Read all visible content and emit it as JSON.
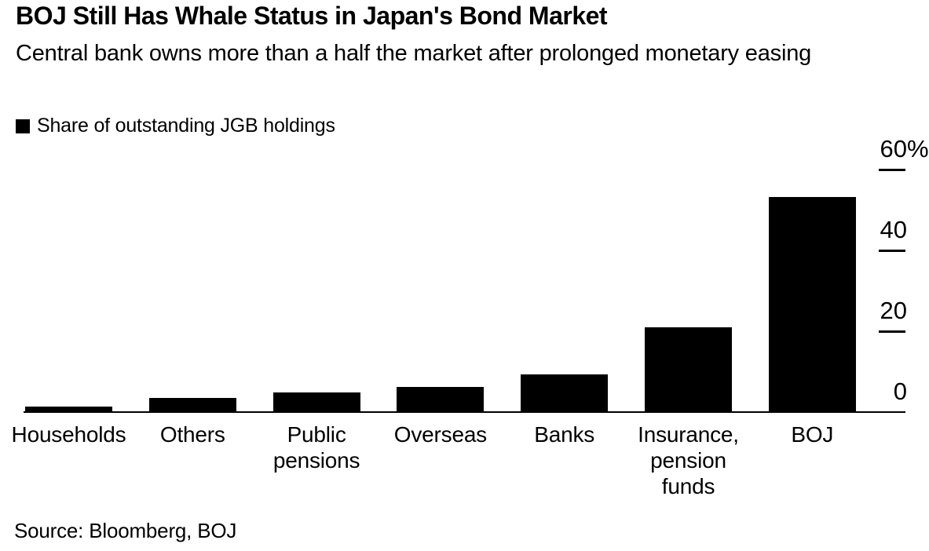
{
  "header": {
    "title": "BOJ Still Has Whale Status in Japan's Bond Market",
    "subtitle": "Central bank owns more than a half the market after prolonged monetary easing"
  },
  "legend": {
    "label": "Share of outstanding JGB holdings",
    "swatch_color": "#000000"
  },
  "chart_data": {
    "type": "bar",
    "title": "BOJ Still Has Whale Status in Japan's Bond Market",
    "subtitle": "Central bank owns more than a half the market after prolonged monetary easing",
    "series_name": "Share of outstanding JGB holdings",
    "categories": [
      "Households",
      "Others",
      "Public pensions",
      "Overseas",
      "Banks",
      "Insurance, pension funds",
      "BOJ"
    ],
    "category_label_lines": [
      [
        "Households"
      ],
      [
        "Others"
      ],
      [
        "Public",
        "pensions"
      ],
      [
        "Overseas"
      ],
      [
        "Banks"
      ],
      [
        "Insurance,",
        "pension",
        "funds"
      ],
      [
        "BOJ"
      ]
    ],
    "values": [
      1.4,
      3.5,
      4.9,
      6.2,
      9.3,
      21.0,
      53.2
    ],
    "unit": "%",
    "ylim": [
      0,
      60
    ],
    "yticks": [
      {
        "value": 60,
        "label": "60",
        "suffix": "%"
      },
      {
        "value": 40,
        "label": "40",
        "suffix": ""
      },
      {
        "value": 20,
        "label": "20",
        "suffix": ""
      },
      {
        "value": 0,
        "label": "0",
        "suffix": ""
      }
    ],
    "bar_color": "#000000",
    "background_color": "#ffffff",
    "text_color": "#000000",
    "axis_side": "right",
    "grid": false,
    "legend_position": "top-left"
  },
  "footer": {
    "source": "Source: Bloomberg, BOJ"
  }
}
